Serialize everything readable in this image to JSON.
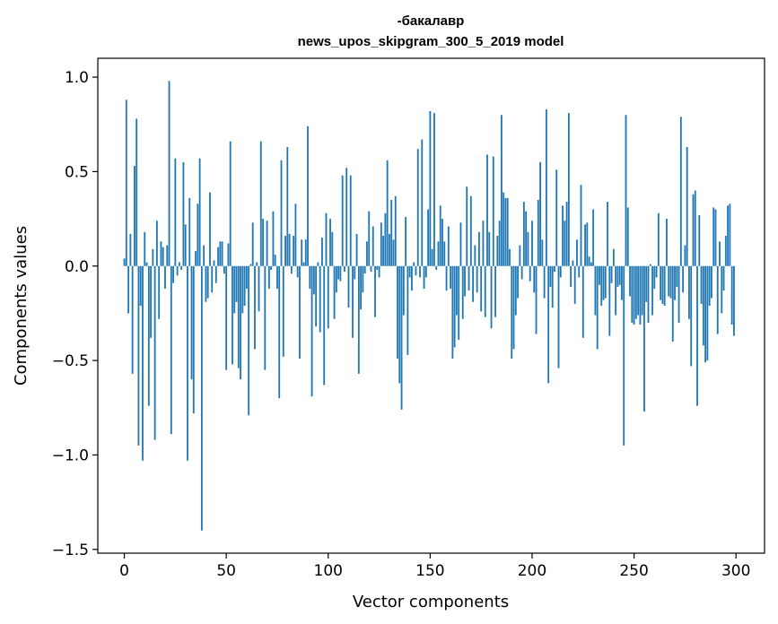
{
  "chart_data": {
    "type": "bar",
    "title": "-бакалавр",
    "subtitle": "news_upos_skipgram_300_5_2019 model",
    "xlabel": "Vector components",
    "ylabel": "Components values",
    "xlim": [
      -13,
      314
    ],
    "ylim": [
      -1.52,
      1.1
    ],
    "xticks": [
      0,
      50,
      100,
      150,
      200,
      250,
      300
    ],
    "yticks": [
      1.0,
      0.5,
      0.0,
      -0.5,
      -1.0,
      -1.5
    ],
    "xtick_labels": [
      "0",
      "50",
      "100",
      "150",
      "200",
      "250",
      "300"
    ],
    "ytick_labels": [
      "1.0",
      "0.5",
      "0.0",
      "−0.5",
      "−1.0",
      "−1.5"
    ],
    "grid": false,
    "bar_color": "#1f77b4",
    "x_start": 0,
    "values": [
      0.04,
      0.88,
      -0.25,
      0.17,
      -0.57,
      0.53,
      0.78,
      -0.95,
      -0.21,
      -1.03,
      0.18,
      0.02,
      -0.74,
      -0.38,
      0.09,
      -0.92,
      0.24,
      -0.28,
      0.13,
      0.1,
      -0.12,
      0.11,
      0.98,
      -0.89,
      -0.09,
      0.57,
      -0.05,
      0.02,
      -0.02,
      0.55,
      0.22,
      -1.03,
      0.36,
      -0.6,
      -0.78,
      0.08,
      0.33,
      0.57,
      -1.4,
      0.11,
      -0.19,
      -0.17,
      0.39,
      -0.14,
      0.03,
      -0.09,
      0.1,
      0.13,
      0.13,
      -0.04,
      -0.55,
      0.12,
      0.66,
      -0.52,
      -0.25,
      -0.19,
      -0.54,
      -0.6,
      -0.25,
      -0.21,
      -0.12,
      -0.79,
      0.01,
      0.23,
      -0.44,
      0.02,
      -0.24,
      0.66,
      0.25,
      -0.55,
      0.24,
      -0.12,
      -0.02,
      0.29,
      0.06,
      -0.12,
      -0.7,
      0.56,
      -0.48,
      0.16,
      0.63,
      0.17,
      -0.04,
      0.16,
      0.33,
      -0.06,
      -0.49,
      0.14,
      0.02,
      0.14,
      0.74,
      -0.12,
      -0.69,
      -0.15,
      -0.32,
      0.02,
      -0.35,
      0.15,
      -0.63,
      0.28,
      -0.33,
      0.25,
      0.18,
      -0.28,
      -0.14,
      -0.07,
      -0.08,
      0.48,
      -0.03,
      0.52,
      -0.22,
      0.48,
      -0.38,
      -0.07,
      0.17,
      -0.57,
      -0.23,
      -0.14,
      -0.04,
      0.13,
      0.29,
      -0.03,
      0.21,
      -0.27,
      -0.02,
      -0.06,
      0.23,
      0.16,
      0.28,
      0.56,
      0.17,
      0.35,
      0.14,
      0.37,
      -0.49,
      -0.62,
      -0.76,
      -0.26,
      0.26,
      -0.47,
      -0.06,
      -0.13,
      0.02,
      -0.05,
      0.62,
      -0.06,
      0.67,
      -0.12,
      -0.06,
      0.3,
      0.82,
      0.09,
      0.81,
      -0.02,
      0.13,
      0.32,
      0.25,
      0.13,
      -0.13,
      0.21,
      -0.12,
      -0.49,
      -0.43,
      -0.26,
      -0.39,
      0.23,
      -0.28,
      -0.16,
      0.42,
      -0.13,
      0.37,
      -0.19,
      0.11,
      -0.14,
      0.18,
      -0.24,
      0.24,
      -0.27,
      0.59,
      0.18,
      -0.33,
      0.58,
      -0.27,
      0.16,
      0.24,
      0.8,
      0.39,
      0.36,
      0.36,
      0.09,
      -0.49,
      -0.44,
      -0.26,
      -0.17,
      0.11,
      -0.07,
      0.34,
      0.29,
      0.18,
      -0.08,
      0.24,
      -0.14,
      -0.36,
      0.35,
      0.55,
      0.14,
      -0.17,
      0.83,
      -0.62,
      -0.11,
      -0.22,
      -0.03,
      0.51,
      -0.54,
      -0.06,
      0.32,
      0.24,
      0.34,
      0.81,
      -0.11,
      0.03,
      -0.2,
      0.14,
      -0.06,
      0.43,
      -0.38,
      0.22,
      0.23,
      0.05,
      0.02,
      0.3,
      -0.26,
      -0.44,
      -0.1,
      -0.21,
      -0.18,
      -0.17,
      0.34,
      -0.37,
      -0.09,
      0.09,
      -0.26,
      -0.11,
      -0.1,
      -0.18,
      -0.95,
      0.8,
      0.31,
      -0.16,
      -0.3,
      -0.31,
      -0.28,
      -0.26,
      -0.31,
      -0.26,
      -0.77,
      -0.19,
      -0.3,
      0.01,
      -0.26,
      -0.12,
      -0.06,
      0.28,
      -0.18,
      -0.2,
      -0.21,
      0.25,
      -0.16,
      -0.17,
      -0.4,
      -0.18,
      -0.11,
      -0.3,
      0.79,
      -0.14,
      0.11,
      0.63,
      -0.28,
      -0.53,
      0.38,
      0.4,
      -0.74,
      0.27,
      -0.2,
      -0.42,
      -0.51,
      -0.5,
      -0.21,
      -0.17,
      0.31,
      0.3,
      -0.36,
      0.13,
      -0.25,
      -0.13,
      0.16,
      0.32,
      0.33,
      -0.31,
      -0.37
    ]
  }
}
